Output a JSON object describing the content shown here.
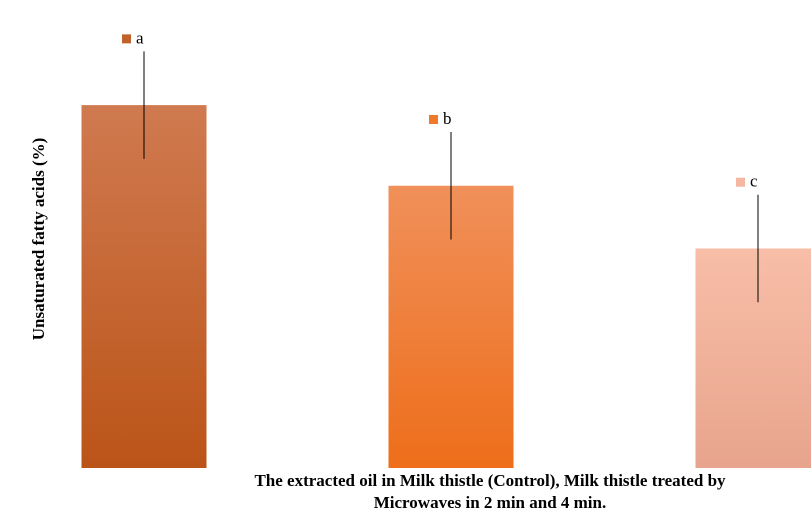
{
  "chart_data": {
    "type": "bar",
    "ylabel": "Unsaturated fatty acids (%)",
    "xlabel_lines": [
      "The extracted oil in Milk thistle (Control), Milk thistle treated by",
      "Microwaves in 2 min and 4 min."
    ],
    "categories": [
      "",
      "",
      ""
    ],
    "values": [
      81,
      63,
      49
    ],
    "error": [
      12,
      12,
      12
    ],
    "significance_letters": [
      "a",
      "b",
      "c"
    ],
    "ylim": [
      0,
      100
    ],
    "grid": false,
    "legend": "none",
    "colors": {
      "bar1_top": "#d07a50",
      "bar1_bottom": "#bb5418",
      "bar2_top": "#f0905a",
      "bar2_bottom": "#ee6e1a",
      "bar3_top": "#f8bea8",
      "bar3_bottom": "#e8a48c",
      "marker1": "#c0622c",
      "marker2": "#f07a2a",
      "marker3": "#f6b7a2",
      "errorbar": "#000000"
    }
  }
}
